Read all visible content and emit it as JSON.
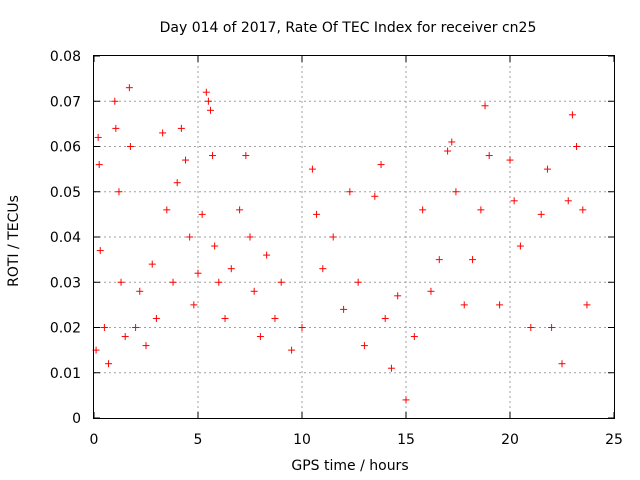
{
  "chart_data": {
    "type": "scatter",
    "title": "Day 014 of 2017, Rate Of TEC Index for receiver cn25",
    "xlabel": "GPS time / hours",
    "ylabel": "ROTI / TECUs",
    "xlim": [
      0,
      25
    ],
    "ylim": [
      0,
      0.08
    ],
    "xticks": [
      "0",
      "5",
      "10",
      "15",
      "20",
      "25"
    ],
    "yticks": [
      "0",
      "0.01",
      "0.02",
      "0.03",
      "0.04",
      "0.05",
      "0.06",
      "0.07",
      "0.08"
    ],
    "grid": true,
    "marker": "plus",
    "color": "#ff0000",
    "series": [
      {
        "x": [
          0.1,
          0.2,
          0.25,
          0.3,
          0.5,
          0.7,
          1.0,
          1.05,
          1.2,
          1.3,
          1.5,
          1.7,
          1.75,
          2.0,
          2.2,
          2.5,
          2.8,
          3.0,
          3.3,
          3.5,
          3.8,
          4.0,
          4.2,
          4.4,
          4.6,
          4.8,
          5.0,
          5.2,
          5.4,
          5.5,
          5.6,
          5.7,
          5.8,
          6.0,
          6.3,
          6.6,
          7.0,
          7.3,
          7.5,
          7.7,
          8.0,
          8.3,
          8.7,
          9.0,
          9.5,
          10.0,
          10.5,
          10.7,
          11.0,
          11.5,
          12.0,
          12.3,
          12.7,
          13.0,
          13.5,
          13.8,
          14.0,
          14.3,
          14.6,
          15.0,
          15.4,
          15.8,
          16.2,
          16.6,
          17.0,
          17.2,
          17.4,
          17.8,
          18.2,
          18.6,
          18.8,
          19.0,
          19.5,
          20.0,
          20.2,
          20.5,
          21.0,
          21.5,
          21.8,
          22.0,
          22.5,
          22.8,
          23.0,
          23.2,
          23.5,
          23.7
        ],
        "y": [
          0.015,
          0.062,
          0.056,
          0.037,
          0.02,
          0.012,
          0.07,
          0.064,
          0.05,
          0.03,
          0.018,
          0.073,
          0.06,
          0.02,
          0.028,
          0.016,
          0.034,
          0.022,
          0.063,
          0.046,
          0.03,
          0.052,
          0.064,
          0.057,
          0.04,
          0.025,
          0.032,
          0.045,
          0.072,
          0.07,
          0.068,
          0.058,
          0.038,
          0.03,
          0.022,
          0.033,
          0.046,
          0.058,
          0.04,
          0.028,
          0.018,
          0.036,
          0.022,
          0.03,
          0.015,
          0.02,
          0.055,
          0.045,
          0.033,
          0.04,
          0.024,
          0.05,
          0.03,
          0.016,
          0.049,
          0.056,
          0.022,
          0.011,
          0.027,
          0.004,
          0.018,
          0.046,
          0.028,
          0.035,
          0.059,
          0.061,
          0.05,
          0.025,
          0.035,
          0.046,
          0.069,
          0.058,
          0.025,
          0.057,
          0.048,
          0.038,
          0.02,
          0.045,
          0.055,
          0.02,
          0.012,
          0.048,
          0.067,
          0.06,
          0.046,
          0.025
        ]
      }
    ]
  }
}
